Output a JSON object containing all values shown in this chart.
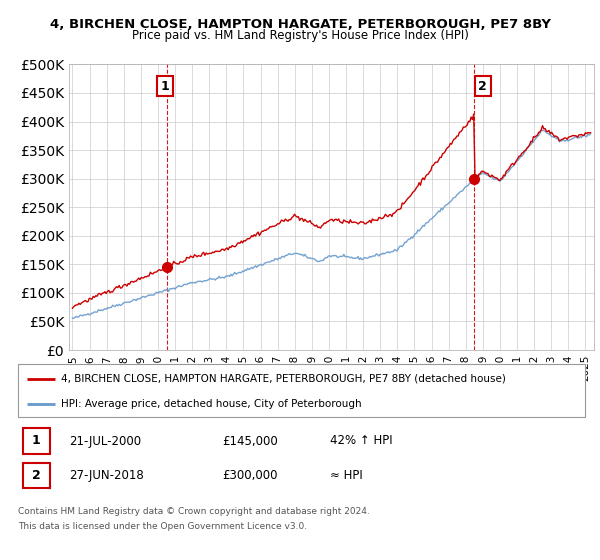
{
  "title1": "4, BIRCHEN CLOSE, HAMPTON HARGATE, PETERBOROUGH, PE7 8BY",
  "title2": "Price paid vs. HM Land Registry's House Price Index (HPI)",
  "legend_line1": "4, BIRCHEN CLOSE, HAMPTON HARGATE, PETERBOROUGH, PE7 8BY (detached house)",
  "legend_line2": "HPI: Average price, detached house, City of Peterborough",
  "footnote1": "Contains HM Land Registry data © Crown copyright and database right 2024.",
  "footnote2": "This data is licensed under the Open Government Licence v3.0.",
  "sale1_date": "21-JUL-2000",
  "sale1_price": "£145,000",
  "sale1_hpi": "42% ↑ HPI",
  "sale2_date": "27-JUN-2018",
  "sale2_price": "£300,000",
  "sale2_hpi": "≈ HPI",
  "red_color": "#cc0000",
  "blue_color": "#6699cc",
  "marker1_x": 2000.55,
  "marker1_y": 145000,
  "marker2_x": 2018.49,
  "marker2_y": 300000,
  "ylim": [
    0,
    500000
  ],
  "xlim_start": 1994.8,
  "xlim_end": 2025.5
}
